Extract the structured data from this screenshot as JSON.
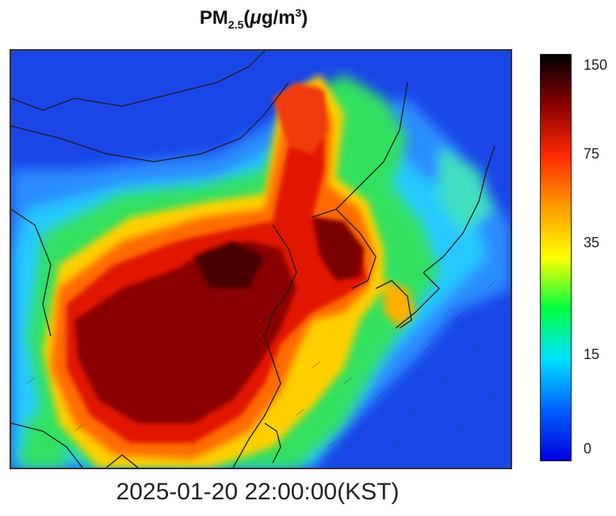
{
  "title": {
    "main": "PM",
    "subscript": "2.5",
    "unit_open": "(",
    "unit_mu": "μ",
    "unit_body": "g/m",
    "unit_sup": "3",
    "unit_close": ")"
  },
  "colorbar": {
    "ticks": [
      "150",
      "75",
      "35",
      "15",
      "0"
    ],
    "colors": [
      "#000000",
      "#8b0000",
      "#ff2a00",
      "#ff9a00",
      "#ffff00",
      "#00ff40",
      "#00e0ff",
      "#0060ff",
      "#0000e0"
    ]
  },
  "timestamp": "2025-01-20 22:00:00(KST)"
}
